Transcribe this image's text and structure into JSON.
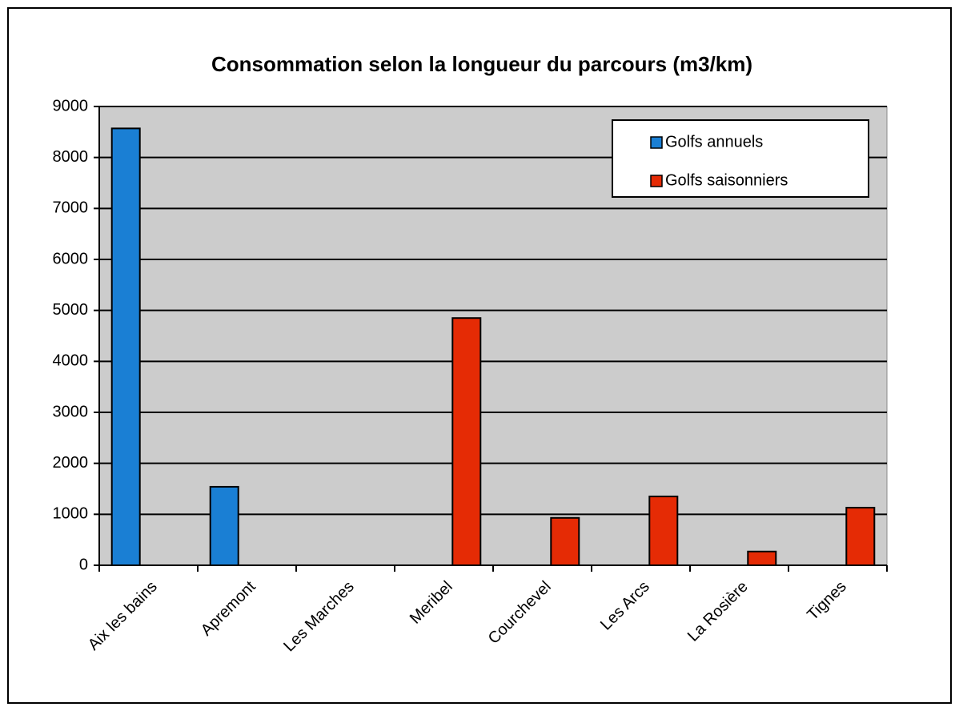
{
  "chart_data": {
    "type": "bar",
    "title": "Consommation selon la longueur du parcours (m3/km)",
    "categories": [
      "Aix les bains",
      "Apremont",
      "Les Marches",
      "Meribel",
      "Courchevel",
      "Les Arcs",
      "La Rosière",
      "Tignes"
    ],
    "series": [
      {
        "name": "Golfs annuels",
        "color": "#1a7fd4",
        "values": [
          8570,
          1540,
          null,
          null,
          null,
          null,
          null,
          null
        ]
      },
      {
        "name": "Golfs saisonniers",
        "color": "#e52b05",
        "values": [
          null,
          null,
          null,
          4850,
          930,
          1350,
          270,
          1130
        ]
      }
    ],
    "ylim": [
      0,
      9000
    ],
    "yticks": [
      0,
      1000,
      2000,
      3000,
      4000,
      5000,
      6000,
      7000,
      8000,
      9000
    ],
    "grid": true,
    "legend": "upper right"
  }
}
